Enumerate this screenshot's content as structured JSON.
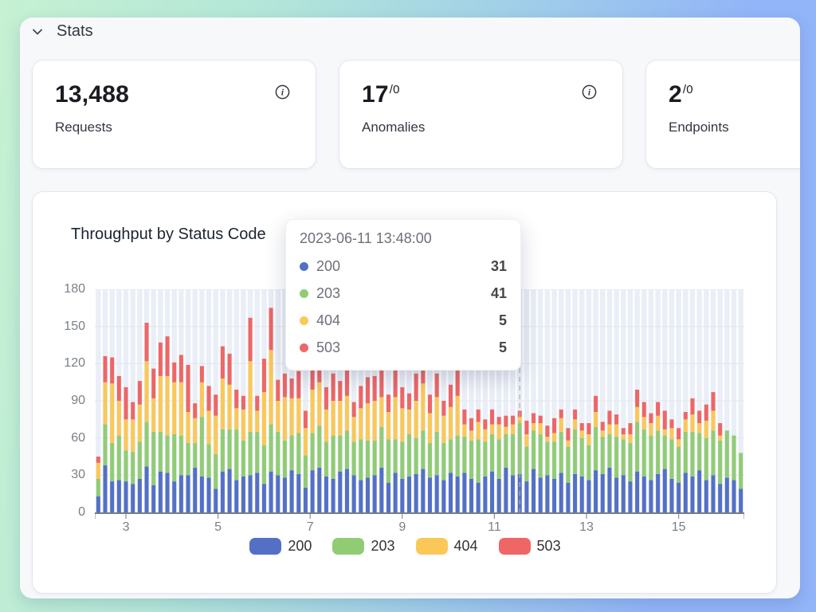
{
  "section": {
    "title": "Stats"
  },
  "stats": {
    "cards": [
      {
        "value": "13,488",
        "suffix": "",
        "label": "Requests"
      },
      {
        "value": "17",
        "suffix": "/0",
        "label": "Anomalies"
      },
      {
        "value": "2",
        "suffix": "/0",
        "label": "Endpoints"
      }
    ]
  },
  "tooltip": {
    "timestamp": "2023-06-11 13:48:00",
    "rows": [
      {
        "label": "200",
        "value": "31",
        "color": "#5470c6"
      },
      {
        "label": "203",
        "value": "41",
        "color": "#91cc75"
      },
      {
        "label": "404",
        "value": "5",
        "color": "#fac858"
      },
      {
        "label": "503",
        "value": "5",
        "color": "#ee6666"
      }
    ]
  },
  "chart_data": {
    "type": "bar",
    "stacked": true,
    "title": "Throughput by Status Code",
    "legend_position": "bottom",
    "grid": true,
    "column_background_color": "#e9eef7",
    "gridline_color": "#e2e6ef",
    "axis_line_color": "#767b83",
    "axis_text_color": "#7b8087",
    "hover_marker_day": 11.55,
    "bar_start_day": 2.4,
    "bar_step_days": 0.15,
    "x_axis": {
      "unit": "day of month (June 2023)",
      "domain": [
        2.325,
        16.425
      ],
      "tick_days": [
        3,
        5,
        7,
        9,
        11,
        13,
        15
      ],
      "tick_labels": [
        "3",
        "5",
        "7",
        "9",
        "11",
        "13",
        "15"
      ]
    },
    "y_axis": {
      "min": 0,
      "max": 180,
      "ticks": [
        0,
        30,
        60,
        90,
        120,
        150,
        180
      ]
    },
    "series": [
      {
        "name": "200",
        "color": "#5470c6",
        "values": [
          13,
          38,
          25,
          26,
          25,
          23,
          27,
          37,
          22,
          33,
          32,
          25,
          30,
          30,
          36,
          29,
          28,
          19,
          33,
          35,
          26,
          29,
          30,
          32,
          23,
          33,
          30,
          28,
          34,
          31,
          20,
          34,
          36,
          29,
          27,
          33,
          35,
          30,
          26,
          28,
          30,
          36,
          24,
          32,
          27,
          29,
          31,
          35,
          28,
          30,
          26,
          32,
          29,
          32,
          27,
          24,
          29,
          33,
          27,
          36,
          30,
          31,
          25,
          35,
          28,
          30,
          27,
          32,
          24,
          31,
          29,
          26,
          34,
          31,
          36,
          28,
          30,
          25,
          33,
          29,
          26,
          31,
          35,
          27,
          24,
          32,
          29,
          34,
          26,
          30,
          23,
          28,
          26,
          19
        ]
      },
      {
        "name": "203",
        "color": "#91cc75",
        "values": [
          14,
          33,
          31,
          36,
          25,
          26,
          30,
          36,
          43,
          32,
          30,
          38,
          32,
          26,
          20,
          48,
          27,
          28,
          34,
          32,
          41,
          29,
          35,
          33,
          31,
          38,
          35,
          30,
          28,
          33,
          26,
          30,
          34,
          28,
          35,
          29,
          31,
          27,
          33,
          30,
          28,
          33,
          35,
          27,
          30,
          34,
          29,
          31,
          28,
          35,
          30,
          27,
          33,
          29,
          31,
          35,
          28,
          30,
          32,
          27,
          33,
          41,
          28,
          31,
          35,
          27,
          30,
          33,
          29,
          36,
          31,
          28,
          35,
          30,
          27,
          33,
          29,
          31,
          40,
          38,
          36,
          35,
          27,
          32,
          29,
          33,
          36,
          30,
          34,
          36,
          35,
          38,
          36,
          29
        ]
      },
      {
        "name": "404",
        "color": "#fac858",
        "values": [
          13,
          34,
          48,
          28,
          25,
          26,
          30,
          49,
          27,
          45,
          48,
          42,
          43,
          25,
          20,
          28,
          27,
          31,
          41,
          36,
          17,
          25,
          57,
          17,
          43,
          60,
          25,
          35,
          30,
          28,
          22,
          35,
          35,
          26,
          28,
          28,
          28,
          20,
          25,
          30,
          32,
          24,
          22,
          34,
          27,
          20,
          30,
          38,
          24,
          28,
          22,
          26,
          32,
          10,
          8,
          14,
          10,
          8,
          12,
          6,
          8,
          5,
          10,
          6,
          9,
          4,
          7,
          11,
          5,
          8,
          6,
          9,
          12,
          5,
          8,
          10,
          4,
          7,
          12,
          10,
          10,
          12,
          5,
          9,
          6,
          10,
          14,
          8,
          14,
          16,
          4,
          0,
          0,
          0
        ]
      },
      {
        "name": "503",
        "color": "#ee6666",
        "values": [
          5,
          21,
          21,
          20,
          26,
          14,
          19,
          31,
          24,
          27,
          32,
          16,
          22,
          38,
          12,
          13,
          20,
          17,
          26,
          25,
          15,
          11,
          35,
          12,
          27,
          34,
          17,
          19,
          16,
          22,
          14,
          24,
          30,
          18,
          22,
          16,
          25,
          12,
          18,
          21,
          20,
          26,
          14,
          24,
          17,
          13,
          22,
          28,
          15,
          19,
          12,
          18,
          24,
          12,
          10,
          10,
          8,
          12,
          6,
          9,
          7,
          5,
          11,
          8,
          6,
          9,
          12,
          7,
          10,
          8,
          6,
          9,
          13,
          7,
          11,
          8,
          5,
          9,
          14,
          12,
          8,
          11,
          15,
          7,
          9,
          6,
          13,
          10,
          13,
          15,
          10,
          0,
          0,
          0
        ]
      }
    ]
  }
}
